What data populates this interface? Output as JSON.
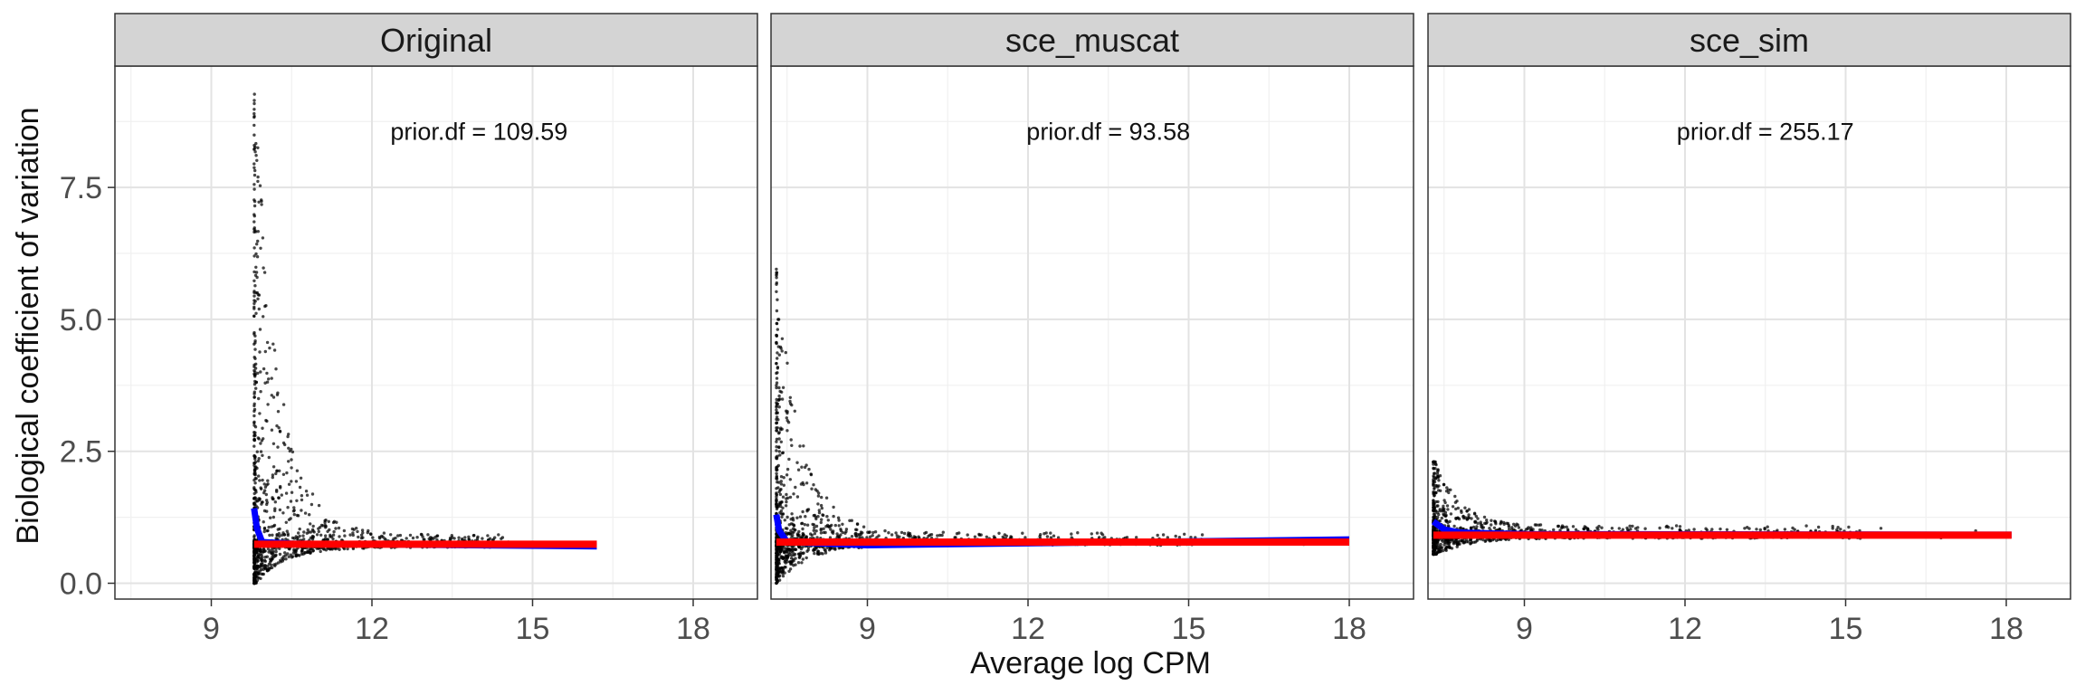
{
  "chart_data": {
    "type": "scatter",
    "xlabel": "Average log CPM",
    "ylabel": "Biological coefficient of variation",
    "xlim": [
      7.2,
      19.2
    ],
    "ylim": [
      -0.3,
      9.8
    ],
    "x_ticks": [
      9,
      12,
      15,
      18
    ],
    "x_tick_labels": [
      "9",
      "12",
      "15",
      "18"
    ],
    "y_ticks": [
      0,
      2.5,
      5,
      7.5
    ],
    "y_tick_labels": [
      "0.0",
      "2.5",
      "5.0",
      "7.5"
    ],
    "grid": true,
    "facets": [
      {
        "name": "Original",
        "annotation": "prior.df = 109.59",
        "annotation_pos": [
          14.0,
          8.4
        ],
        "point_x_range": [
          9.8,
          16.2
        ],
        "point_floor": 0.0,
        "tagwise_peak": 9.3,
        "trend": [
          [
            9.8,
            1.42
          ],
          [
            9.85,
            1.05
          ],
          [
            9.95,
            0.78
          ],
          [
            10.5,
            0.75
          ],
          [
            16.2,
            0.7
          ]
        ],
        "common": [
          [
            9.8,
            0.74
          ],
          [
            16.2,
            0.74
          ]
        ]
      },
      {
        "name": "sce_muscat",
        "annotation": "prior.df = 93.58",
        "annotation_pos": [
          13.5,
          8.4
        ],
        "point_x_range": [
          7.3,
          18.0
        ],
        "point_floor": 0.0,
        "tagwise_peak": 6.0,
        "trend": [
          [
            7.3,
            1.3
          ],
          [
            7.35,
            1.0
          ],
          [
            7.5,
            0.78
          ],
          [
            9.0,
            0.72
          ],
          [
            18.0,
            0.83
          ]
        ],
        "common": [
          [
            7.3,
            0.78
          ],
          [
            18.0,
            0.78
          ]
        ]
      },
      {
        "name": "sce_sim",
        "annotation": "prior.df = 255.17",
        "annotation_pos": [
          13.5,
          8.4
        ],
        "point_x_range": [
          7.3,
          18.1
        ],
        "point_floor": 0.55,
        "tagwise_peak": 2.3,
        "trend": [
          [
            7.3,
            1.17
          ],
          [
            7.5,
            1.02
          ],
          [
            7.8,
            0.96
          ],
          [
            9.0,
            0.93
          ],
          [
            18.1,
            0.92
          ]
        ],
        "common": [
          [
            7.3,
            0.91
          ],
          [
            18.1,
            0.91
          ]
        ]
      }
    ],
    "colors": {
      "points": "#000000",
      "trend": "#0000ff",
      "common": "#ff0000",
      "strip": "#d4d4d4"
    }
  }
}
